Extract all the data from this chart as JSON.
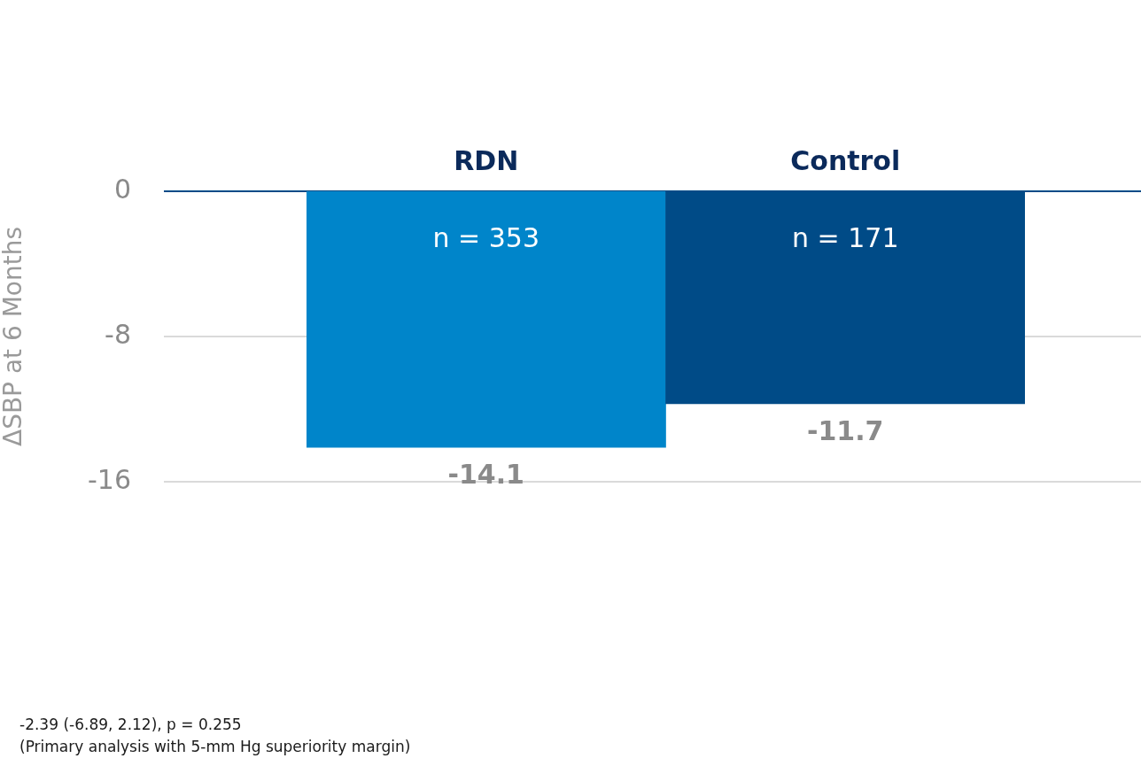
{
  "chart_data": {
    "type": "bar",
    "ylabel": "ΔSBP at 6 Months",
    "categories": [
      "RDN",
      "Control"
    ],
    "values": [
      -14.1,
      -11.7
    ],
    "colors": [
      "#0085ca",
      "#004b87"
    ],
    "ylim": [
      -16,
      0
    ],
    "yticks": [
      -16,
      -8,
      0
    ],
    "grid": "y",
    "data_labels": true,
    "legend": false,
    "annotations": [
      "n = 353",
      "n = 171",
      "-2.39 (-6.89, 2.12), p = 0.255",
      "(Primary analysis with 5-mm Hg superiority margin)"
    ]
  }
}
